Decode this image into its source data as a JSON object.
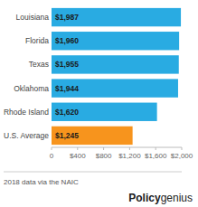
{
  "chart_data": {
    "type": "bar",
    "orientation": "horizontal",
    "categories": [
      "Louisiana",
      "Florida",
      "Texas",
      "Oklahoma",
      "Rhode Island",
      "U.S. Average"
    ],
    "values": [
      1987,
      1960,
      1955,
      1944,
      1620,
      1245
    ],
    "value_labels": [
      "$1,987",
      "$1,960",
      "$1,955",
      "$1,944",
      "$1,620",
      "$1,245"
    ],
    "data_labels": true,
    "colors": [
      "#29ABE2",
      "#29ABE2",
      "#29ABE2",
      "#29ABE2",
      "#29ABE2",
      "#F7941D"
    ],
    "xlim": [
      0,
      2000
    ],
    "xticks": [
      0,
      {
        "value": 400,
        "label": "$400"
      },
      {
        "value": 800,
        "label": "$800"
      },
      {
        "value": 1200,
        "label": "$1,200"
      },
      {
        "value": 1600,
        "label": "$1,600"
      },
      {
        "value": 2000,
        "label": "$2,000"
      }
    ],
    "grid": false,
    "annotations": [
      "2018 data via the NAIC",
      "Policy",
      "genius"
    ]
  }
}
